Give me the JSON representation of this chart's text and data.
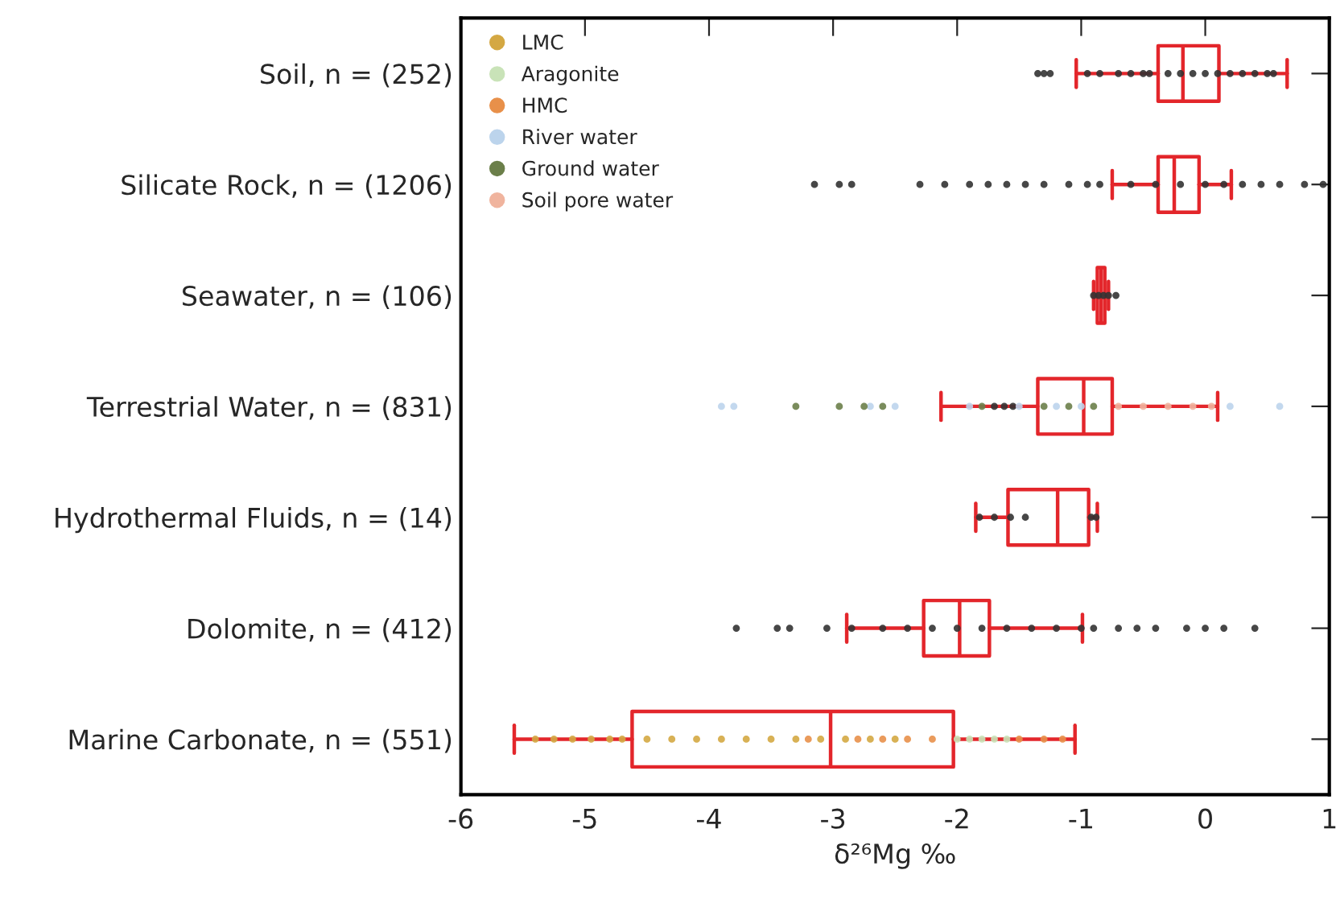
{
  "chart_data": {
    "type": "box",
    "orientation": "horizontal",
    "xlabel": "δ²⁶Mg ‰",
    "categories": [
      "Soil, n = (252)",
      "Silicate Rock, n = (1206)",
      "Seawater, n = (106)",
      "Terrestrial Water, n = (831)",
      "Hydrothermal Fluids, n = (14)",
      "Dolomite, n = (412)",
      "Marine Carbonate, n = (551)"
    ],
    "color": "#e3262b",
    "boxes": [
      {
        "low": -1.04,
        "q1": -0.38,
        "median": -0.18,
        "q3": 0.11,
        "high": 0.66
      },
      {
        "low": -0.75,
        "q1": -0.38,
        "median": -0.25,
        "q3": -0.05,
        "high": 0.21
      },
      {
        "low": -0.9,
        "q1": -0.87,
        "median": -0.84,
        "q3": -0.81,
        "high": -0.78
      },
      {
        "low": -2.13,
        "q1": -1.35,
        "median": -0.98,
        "q3": -0.75,
        "high": 0.1
      },
      {
        "low": -1.85,
        "q1": -1.59,
        "median": -1.19,
        "q3": -0.94,
        "high": -0.87
      },
      {
        "low": -2.89,
        "q1": -2.27,
        "median": -1.98,
        "q3": -1.74,
        "high": -0.99
      },
      {
        "low": -5.57,
        "q1": -4.62,
        "median": -3.02,
        "q3": -2.03,
        "high": -1.05
      }
    ],
    "xlim": [
      -6,
      1
    ],
    "xticks": [
      -6,
      -5,
      -4,
      -3,
      -2,
      -1,
      0,
      1
    ],
    "marker": "circle",
    "legend": "top left",
    "grid": false,
    "series": [
      {
        "type": "scatter",
        "color": "#333333",
        "x": [
          "Soil, n = (252)",
          "Soil, n = (252)",
          "Soil, n = (252)",
          "Soil, n = (252)",
          "Soil, n = (252)",
          "Soil, n = (252)",
          "Soil, n = (252)",
          "Soil, n = (252)",
          "Soil, n = (252)",
          "Soil, n = (252)",
          "Soil, n = (252)",
          "Soil, n = (252)",
          "Soil, n = (252)",
          "Soil, n = (252)",
          "Soil, n = (252)",
          "Soil, n = (252)",
          "Soil, n = (252)",
          "Soil, n = (252)",
          "Soil, n = (252)"
        ],
        "values": [
          -1.35,
          -1.3,
          -1.25,
          -0.95,
          -0.85,
          -0.7,
          -0.6,
          -0.5,
          -0.45,
          -0.3,
          -0.2,
          -0.1,
          0,
          0.1,
          0.2,
          0.3,
          0.4,
          0.5,
          0.55
        ]
      },
      {
        "type": "scatter",
        "color": "#333333",
        "x": [
          "Silicate Rock, n = (1206)",
          "Silicate Rock, n = (1206)",
          "Silicate Rock, n = (1206)",
          "Silicate Rock, n = (1206)",
          "Silicate Rock, n = (1206)",
          "Silicate Rock, n = (1206)",
          "Silicate Rock, n = (1206)",
          "Silicate Rock, n = (1206)",
          "Silicate Rock, n = (1206)",
          "Silicate Rock, n = (1206)",
          "Silicate Rock, n = (1206)",
          "Silicate Rock, n = (1206)",
          "Silicate Rock, n = (1206)",
          "Silicate Rock, n = (1206)",
          "Silicate Rock, n = (1206)",
          "Silicate Rock, n = (1206)",
          "Silicate Rock, n = (1206)",
          "Silicate Rock, n = (1206)",
          "Silicate Rock, n = (1206)",
          "Silicate Rock, n = (1206)",
          "Silicate Rock, n = (1206)",
          "Silicate Rock, n = (1206)",
          "Silicate Rock, n = (1206)"
        ],
        "values": [
          -3.15,
          -2.95,
          -2.85,
          -2.3,
          -2.1,
          -1.9,
          -1.75,
          -1.6,
          -1.45,
          -1.3,
          -1.1,
          -0.95,
          -0.85,
          -0.6,
          -0.4,
          -0.2,
          0,
          0.15,
          0.3,
          0.45,
          0.6,
          0.8,
          0.95
        ]
      },
      {
        "type": "scatter",
        "color": "#333333",
        "x": [
          "Seawater, n = (106)",
          "Seawater, n = (106)",
          "Seawater, n = (106)",
          "Seawater, n = (106)",
          "Seawater, n = (106)"
        ],
        "values": [
          -0.9,
          -0.86,
          -0.82,
          -0.78,
          -0.72
        ]
      },
      {
        "type": "scatter",
        "color": "#333333",
        "x": [
          "Terrestrial Water, n = (831)",
          "Terrestrial Water, n = (831)",
          "Terrestrial Water, n = (831)"
        ],
        "values": [
          -1.7,
          -1.62,
          -1.55
        ]
      },
      {
        "type": "scatter",
        "color": "#333333",
        "x": [
          "Hydrothermal Fluids, n = (14)",
          "Hydrothermal Fluids, n = (14)",
          "Hydrothermal Fluids, n = (14)",
          "Hydrothermal Fluids, n = (14)",
          "Hydrothermal Fluids, n = (14)",
          "Hydrothermal Fluids, n = (14)"
        ],
        "values": [
          -1.82,
          -1.7,
          -1.57,
          -1.45,
          -0.92,
          -0.88
        ]
      },
      {
        "type": "scatter",
        "color": "#333333",
        "x": [
          "Dolomite, n = (412)",
          "Dolomite, n = (412)",
          "Dolomite, n = (412)",
          "Dolomite, n = (412)",
          "Dolomite, n = (412)",
          "Dolomite, n = (412)",
          "Dolomite, n = (412)",
          "Dolomite, n = (412)",
          "Dolomite, n = (412)",
          "Dolomite, n = (412)",
          "Dolomite, n = (412)",
          "Dolomite, n = (412)",
          "Dolomite, n = (412)",
          "Dolomite, n = (412)",
          "Dolomite, n = (412)",
          "Dolomite, n = (412)",
          "Dolomite, n = (412)",
          "Dolomite, n = (412)",
          "Dolomite, n = (412)",
          "Dolomite, n = (412)",
          "Dolomite, n = (412)",
          "Dolomite, n = (412)"
        ],
        "values": [
          -3.78,
          -3.45,
          -3.35,
          -3.05,
          -2.85,
          -2.6,
          -2.4,
          -2.2,
          -2.0,
          -1.8,
          -1.6,
          -1.4,
          -1.2,
          -1.0,
          -0.9,
          -0.7,
          -0.55,
          -0.4,
          -0.15,
          0.0,
          0.15,
          0.4
        ]
      },
      {
        "type": "scatter",
        "name": "LMC",
        "color": "#d4a843",
        "x": [
          "Marine Carbonate, n = (551)",
          "Marine Carbonate, n = (551)",
          "Marine Carbonate, n = (551)",
          "Marine Carbonate, n = (551)",
          "Marine Carbonate, n = (551)",
          "Marine Carbonate, n = (551)",
          "Marine Carbonate, n = (551)",
          "Marine Carbonate, n = (551)",
          "Marine Carbonate, n = (551)",
          "Marine Carbonate, n = (551)",
          "Marine Carbonate, n = (551)",
          "Marine Carbonate, n = (551)",
          "Marine Carbonate, n = (551)",
          "Marine Carbonate, n = (551)",
          "Marine Carbonate, n = (551)",
          "Marine Carbonate, n = (551)",
          "Marine Carbonate, n = (551)"
        ],
        "values": [
          -5.4,
          -5.25,
          -5.1,
          -4.95,
          -4.8,
          -4.7,
          -4.5,
          -4.3,
          -4.1,
          -3.9,
          -3.7,
          -3.5,
          -3.3,
          -3.1,
          -2.9,
          -2.7,
          -2.5
        ]
      },
      {
        "type": "scatter",
        "name": "Aragonite",
        "color": "#c9e3b8",
        "x": [
          "Marine Carbonate, n = (551)",
          "Marine Carbonate, n = (551)",
          "Marine Carbonate, n = (551)",
          "Marine Carbonate, n = (551)",
          "Marine Carbonate, n = (551)"
        ],
        "values": [
          -2.0,
          -1.9,
          -1.8,
          -1.7,
          -1.6
        ]
      },
      {
        "type": "scatter",
        "name": "HMC",
        "color": "#e8904a",
        "x": [
          "Marine Carbonate, n = (551)",
          "Marine Carbonate, n = (551)",
          "Marine Carbonate, n = (551)",
          "Marine Carbonate, n = (551)",
          "Marine Carbonate, n = (551)",
          "Marine Carbonate, n = (551)",
          "Marine Carbonate, n = (551)",
          "Marine Carbonate, n = (551)"
        ],
        "values": [
          -3.2,
          -2.8,
          -2.6,
          -2.4,
          -2.2,
          -1.5,
          -1.3,
          -1.15
        ]
      },
      {
        "type": "scatter",
        "name": "River water",
        "color": "#bcd4ec",
        "x": [
          "Terrestrial Water, n = (831)",
          "Terrestrial Water, n = (831)",
          "Terrestrial Water, n = (831)",
          "Terrestrial Water, n = (831)",
          "Terrestrial Water, n = (831)",
          "Terrestrial Water, n = (831)",
          "Terrestrial Water, n = (831)",
          "Terrestrial Water, n = (831)",
          "Terrestrial Water, n = (831)",
          "Terrestrial Water, n = (831)"
        ],
        "values": [
          -3.9,
          -3.8,
          -2.7,
          -2.5,
          -1.9,
          -1.5,
          -1.2,
          -1.0,
          0.2,
          0.6
        ]
      },
      {
        "type": "scatter",
        "name": "Ground water",
        "color": "#6b7f4a",
        "x": [
          "Terrestrial Water, n = (831)",
          "Terrestrial Water, n = (831)",
          "Terrestrial Water, n = (831)",
          "Terrestrial Water, n = (831)",
          "Terrestrial Water, n = (831)",
          "Terrestrial Water, n = (831)",
          "Terrestrial Water, n = (831)",
          "Terrestrial Water, n = (831)"
        ],
        "values": [
          -3.3,
          -2.95,
          -2.75,
          -2.6,
          -1.8,
          -1.3,
          -1.1,
          -0.9
        ]
      },
      {
        "type": "scatter",
        "name": "Soil pore water",
        "color": "#f0b49e",
        "x": [
          "Terrestrial Water, n = (831)",
          "Terrestrial Water, n = (831)",
          "Terrestrial Water, n = (831)",
          "Terrestrial Water, n = (831)",
          "Terrestrial Water, n = (831)"
        ],
        "values": [
          -0.7,
          -0.5,
          -0.3,
          -0.1,
          0.05
        ]
      }
    ]
  }
}
